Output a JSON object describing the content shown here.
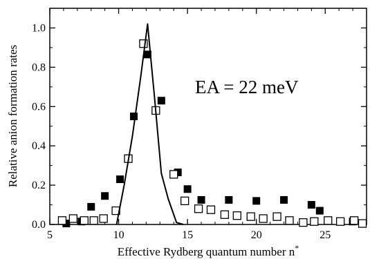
{
  "chart_data": {
    "type": "scatter",
    "title": "",
    "xlabel": "Effective Rydberg quantum number n*",
    "ylabel": "Relative anion formation rates",
    "xlim": [
      5,
      28
    ],
    "ylim": [
      0,
      1.1
    ],
    "xticks": [
      5,
      10,
      15,
      20,
      25
    ],
    "yticks": [
      0.0,
      0.2,
      0.4,
      0.6,
      0.8,
      1.0
    ],
    "xtick_labels": [
      "5",
      "10",
      "15",
      "20",
      "25"
    ],
    "ytick_labels": [
      "0.0",
      "0.2",
      "0.4",
      "0.6",
      "0.8",
      "1.0"
    ],
    "grid": false,
    "annotation": "EA = 22 meV",
    "series": [
      {
        "marker": "filled-square",
        "color": "#000000",
        "x": [
          6.2,
          7.3,
          8.0,
          9.0,
          10.1,
          11.1,
          12.1,
          13.1,
          14.3,
          15.0,
          16.0,
          18.0,
          20.0,
          22.0,
          24.0,
          24.6,
          27.0
        ],
        "y": [
          0.005,
          0.015,
          0.09,
          0.145,
          0.23,
          0.55,
          0.865,
          0.63,
          0.265,
          0.18,
          0.125,
          0.125,
          0.12,
          0.125,
          0.1,
          0.07,
          0.015
        ]
      },
      {
        "marker": "open-square",
        "color": "#000000",
        "x": [
          5.9,
          6.7,
          7.5,
          8.2,
          8.9,
          9.8,
          10.7,
          11.8,
          12.7,
          14.0,
          14.8,
          15.8,
          16.7,
          17.7,
          18.6,
          19.6,
          20.5,
          21.5,
          22.4,
          23.4,
          24.2,
          25.2,
          26.1,
          27.1,
          27.7
        ],
        "y": [
          0.02,
          0.03,
          0.02,
          0.02,
          0.03,
          0.07,
          0.335,
          0.92,
          0.58,
          0.255,
          0.12,
          0.08,
          0.075,
          0.05,
          0.045,
          0.04,
          0.03,
          0.04,
          0.02,
          0.01,
          0.015,
          0.02,
          0.015,
          0.02,
          0.005
        ]
      },
      {
        "marker": "line",
        "color": "#000000",
        "x": [
          9.85,
          10.4,
          11.0,
          11.6,
          12.1,
          12.6,
          13.1,
          13.6,
          14.2,
          14.7
        ],
        "y": [
          0.0,
          0.2,
          0.45,
          0.75,
          1.02,
          0.65,
          0.26,
          0.13,
          0.01,
          0.0
        ]
      }
    ]
  }
}
